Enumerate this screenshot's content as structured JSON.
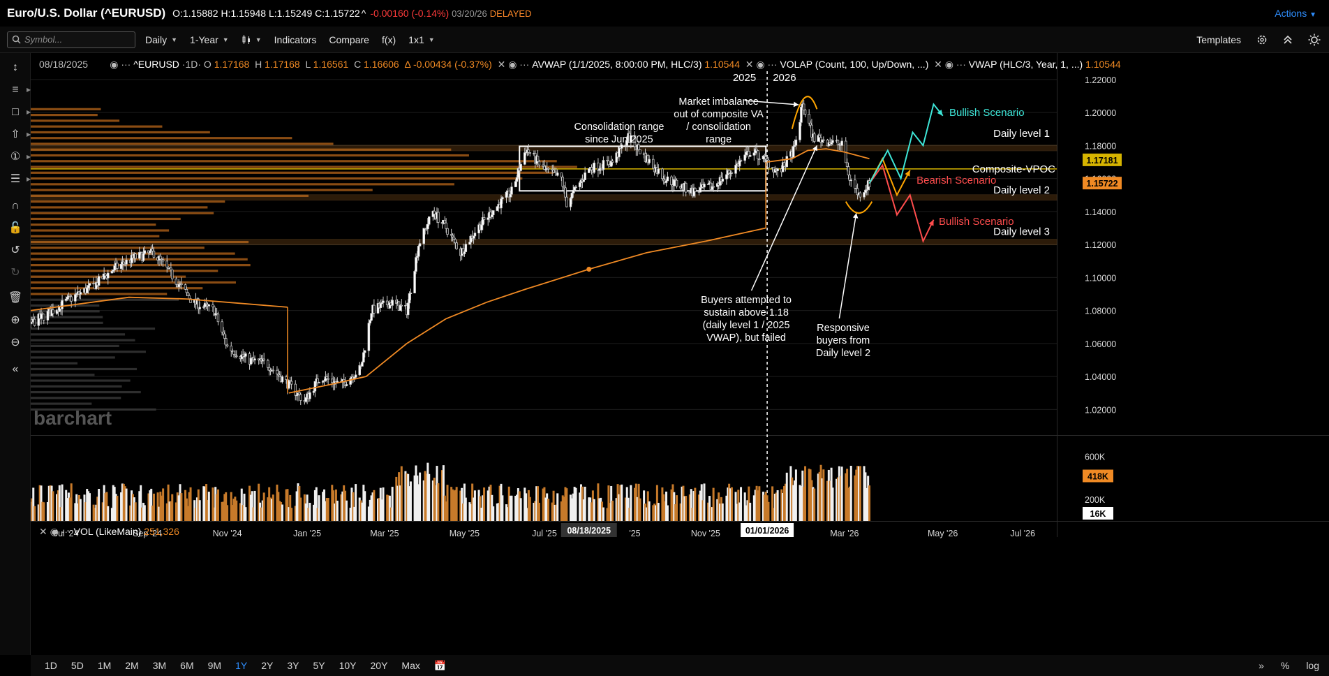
{
  "header": {
    "symbol": "Euro/U.S. Dollar (^EURUSD)",
    "ohlc": "O:1.15882 H:1.15948 L:1.15249 C:1.15722",
    "arrow": "^",
    "change": "-0.00160 (-0.14%)",
    "date": "03/20/26",
    "status": "DELAYED",
    "actions": "Actions"
  },
  "toolbar": {
    "search_placeholder": "Symbol...",
    "interval": "Daily",
    "range": "1-Year",
    "chart_type_icon": "candles-icon",
    "indicators": "Indicators",
    "compare": "Compare",
    "fx": "f(x)",
    "layout": "1x1",
    "templates": "Templates"
  },
  "legend": {
    "date": "08/18/2025",
    "symbol": "^EURUSD",
    "interval": "1D",
    "o_label": "O",
    "o": "1.17168",
    "h_label": "H",
    "h": "1.17168",
    "l_label": "L",
    "l": "1.16561",
    "c_label": "C",
    "c": "1.16606",
    "delta": "Δ -0.00434 (-0.37%)",
    "avwap_label": "AVWAP (1/1/2025, 8:00:00 PM, HLC/3)",
    "avwap_value": "1.10544",
    "volap_label": "VOLAP (Count, 100, Up/Down, ...)",
    "vwap_label": "VWAP (HLC/3, Year, 1, ...)",
    "vwap_value": "1.10544"
  },
  "volume_legend": {
    "label": "VOL (LikeMain)",
    "value": "251,326"
  },
  "annotations": {
    "consolidation": [
      "Consolidation range",
      "since Jun 2025"
    ],
    "imbalance": [
      "Market imbalance",
      "out of composite VA",
      "/ consolidation",
      "range"
    ],
    "buyers": [
      "Buyers attempted to",
      "sustain above 1.18",
      "(daily level 1 / 2025",
      "VWAP), but failed"
    ],
    "responsive": [
      "Responsive",
      "buyers from",
      "Daily level 2"
    ],
    "year_2025": "2025",
    "year_2026": "2026",
    "bullish_top": "Bullish Scenario",
    "bearish": "Bearish Scenario",
    "bullish_bottom": "Bullish Scenario",
    "daily_level_1": "Daily level 1",
    "daily_level_2": "Daily level 2",
    "daily_level_3": "Daily level 3",
    "composite_vpoc": "Composite-VPOC",
    "watermark": "barchart"
  },
  "price_axis": {
    "ticks": [
      "1.22000",
      "1.20000",
      "1.18000",
      "1.16000",
      "1.14000",
      "1.12000",
      "1.10000",
      "1.08000",
      "1.06000",
      "1.04000",
      "1.02000"
    ],
    "tag_vpoc": "1.17181",
    "tag_last": "1.15722"
  },
  "volume_axis": {
    "ticks": [
      "600K",
      "200K"
    ],
    "tag_current": "418K",
    "tag_min": "16K"
  },
  "time_axis": {
    "labels": [
      "Jul '24",
      "Sep '24",
      "Nov '24",
      "Jan '25",
      "Mar '25",
      "May '25",
      "Jul '25",
      "'25",
      "Nov '25",
      "Mar '26",
      "May '26",
      "Jul '26"
    ],
    "cursor_label": "08/18/2025",
    "divider_label": "01/01/2026"
  },
  "periods": [
    "1D",
    "5D",
    "1M",
    "2M",
    "3M",
    "6M",
    "9M",
    "1Y",
    "2Y",
    "3Y",
    "5Y",
    "10Y",
    "20Y",
    "Max"
  ],
  "active_period": "1Y",
  "bottom_right": {
    "percent": "%",
    "log": "log"
  },
  "colors": {
    "accent": "#2f8fff",
    "orange": "#f08a24",
    "vpoc": "#d6b400",
    "bull": "#3ee6d8",
    "bear": "#ff4d4d",
    "warn": "#ffa500"
  },
  "chart_data": {
    "type": "candlestick",
    "price_range": [
      1.01,
      1.225
    ],
    "levels": {
      "daily_level_1": 1.1785,
      "composite_vpoc": 1.1658,
      "daily_level_2": 1.1485,
      "daily_level_3": 1.1215
    },
    "consolidation_box": {
      "from": "2025-06-26",
      "to": "2025-12-31",
      "high": 1.1795,
      "low": 1.1525
    },
    "price_path": [
      [
        "2024-06-18",
        1.072
      ],
      [
        "2024-07-05",
        1.08
      ],
      [
        "2024-07-20",
        1.088
      ],
      [
        "2024-08-05",
        1.095
      ],
      [
        "2024-08-20",
        1.105
      ],
      [
        "2024-09-05",
        1.112
      ],
      [
        "2024-09-20",
        1.115
      ],
      [
        "2024-10-05",
        1.1
      ],
      [
        "2024-10-20",
        1.085
      ],
      [
        "2024-11-05",
        1.08
      ],
      [
        "2024-11-15",
        1.058
      ],
      [
        "2024-12-01",
        1.05
      ],
      [
        "2024-12-15",
        1.048
      ],
      [
        "2025-01-01",
        1.035
      ],
      [
        "2025-01-13",
        1.025
      ],
      [
        "2025-01-25",
        1.04
      ],
      [
        "2025-02-10",
        1.035
      ],
      [
        "2025-02-25",
        1.045
      ],
      [
        "2025-03-05",
        1.08
      ],
      [
        "2025-03-20",
        1.085
      ],
      [
        "2025-04-01",
        1.08
      ],
      [
        "2025-04-10",
        1.12
      ],
      [
        "2025-04-21",
        1.14
      ],
      [
        "2025-05-01",
        1.13
      ],
      [
        "2025-05-12",
        1.115
      ],
      [
        "2025-05-25",
        1.13
      ],
      [
        "2025-06-05",
        1.14
      ],
      [
        "2025-06-20",
        1.152
      ],
      [
        "2025-07-01",
        1.178
      ],
      [
        "2025-07-15",
        1.165
      ],
      [
        "2025-07-28",
        1.16
      ],
      [
        "2025-08-01",
        1.145
      ],
      [
        "2025-08-18",
        1.166
      ],
      [
        "2025-09-05",
        1.17
      ],
      [
        "2025-09-17",
        1.185
      ],
      [
        "2025-10-01",
        1.172
      ],
      [
        "2025-10-15",
        1.16
      ],
      [
        "2025-11-05",
        1.152
      ],
      [
        "2025-11-20",
        1.155
      ],
      [
        "2025-12-05",
        1.165
      ],
      [
        "2025-12-20",
        1.177
      ],
      [
        "2026-01-01",
        1.17
      ],
      [
        "2026-01-10",
        1.163
      ],
      [
        "2026-01-22",
        1.178
      ],
      [
        "2026-01-28",
        1.205
      ],
      [
        "2026-02-05",
        1.185
      ],
      [
        "2026-02-15",
        1.183
      ],
      [
        "2026-02-27",
        1.18
      ],
      [
        "2026-03-05",
        1.16
      ],
      [
        "2026-03-12",
        1.15
      ],
      [
        "2026-03-20",
        1.157
      ]
    ],
    "avwap_path": [
      [
        "2025-01-01",
        1.03
      ],
      [
        "2025-02-01",
        1.035
      ],
      [
        "2025-03-01",
        1.04
      ],
      [
        "2025-04-01",
        1.06
      ],
      [
        "2025-05-01",
        1.075
      ],
      [
        "2025-06-01",
        1.085
      ],
      [
        "2025-07-01",
        1.093
      ],
      [
        "2025-08-18",
        1.105
      ],
      [
        "2025-10-01",
        1.115
      ],
      [
        "2025-11-15",
        1.122
      ],
      [
        "2025-12-31",
        1.13
      ]
    ],
    "vwap2026_path": [
      [
        "2026-01-01",
        1.17
      ],
      [
        "2026-01-20",
        1.172
      ],
      [
        "2026-02-01",
        1.177
      ],
      [
        "2026-02-15",
        1.178
      ],
      [
        "2026-03-01",
        1.176
      ],
      [
        "2026-03-20",
        1.172
      ]
    ],
    "vwap2024_path": [
      [
        "2024-06-18",
        1.08
      ],
      [
        "2024-09-01",
        1.088
      ],
      [
        "2024-10-15",
        1.087
      ],
      [
        "2024-12-31",
        1.082
      ]
    ],
    "scenarios": {
      "bullish_top": [
        [
          "2026-03-20",
          1.157
        ],
        [
          "2026-04-03",
          1.177
        ],
        [
          "2026-04-13",
          1.16
        ],
        [
          "2026-04-22",
          1.188
        ],
        [
          "2026-04-30",
          1.18
        ],
        [
          "2026-05-08",
          1.205
        ],
        [
          "2026-05-15",
          1.198
        ]
      ],
      "bearish": [
        [
          "2026-03-20",
          1.157
        ],
        [
          "2026-03-30",
          1.172
        ],
        [
          "2026-04-10",
          1.15
        ],
        [
          "2026-04-20",
          1.165
        ]
      ],
      "bullish_bottom": [
        [
          "2026-03-20",
          1.157
        ],
        [
          "2026-03-30",
          1.168
        ],
        [
          "2026-04-10",
          1.138
        ],
        [
          "2026-04-20",
          1.15
        ],
        [
          "2026-04-30",
          1.122
        ],
        [
          "2026-05-08",
          1.135
        ]
      ]
    },
    "volume_range": [
      0,
      700000
    ],
    "xaxis_start": "2024-06-18",
    "xaxis_end": "2026-08-10"
  }
}
